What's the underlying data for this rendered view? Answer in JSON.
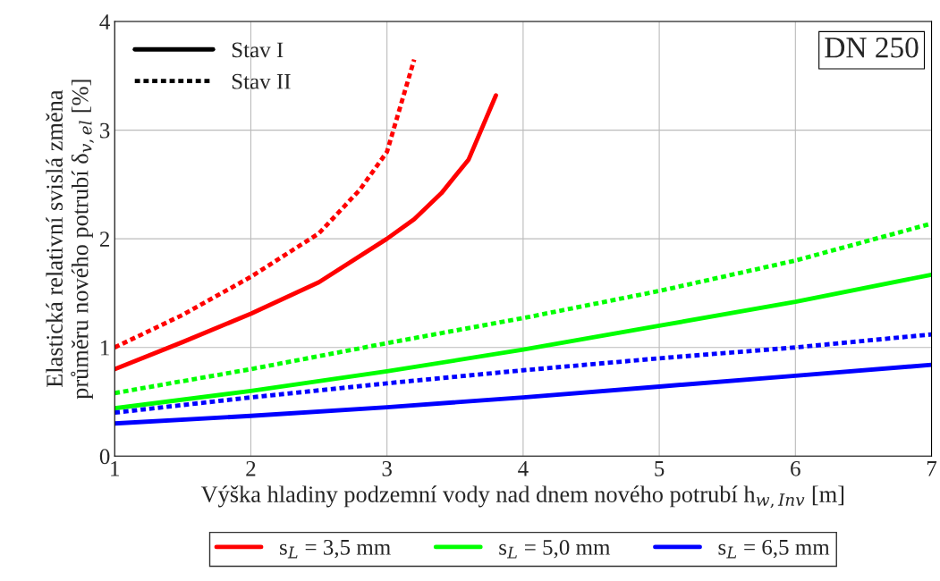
{
  "chart_data": {
    "type": "line",
    "xlabel": "Výška hladiny podzemní vody nad dnem nového potrubí h$_{w,Inv}$ [m]",
    "ylabel": "Elastická relativní svislá změna\nprůměru nového potrubí δ$_{v,el}$ [%]",
    "annotations": [
      "DN 250",
      "Stav I",
      "Stav II"
    ],
    "xlim": [
      1,
      7
    ],
    "ylim": [
      0,
      4
    ],
    "xticks": [
      1,
      2,
      3,
      4,
      5,
      6,
      7
    ],
    "yticks": [
      0,
      1,
      2,
      3,
      4
    ],
    "grid": true,
    "legend": "bottom",
    "marker": "none",
    "series": [
      {
        "name": "s$_{L}$ = 3,5 mm",
        "color": "#ff0000",
        "line_style": "solid",
        "x": [
          1,
          1.5,
          2,
          2.5,
          3,
          3.2,
          3.4,
          3.6,
          3.8
        ],
        "values": [
          0.8,
          1.05,
          1.31,
          1.6,
          2.0,
          2.18,
          2.42,
          2.73,
          3.32
        ]
      },
      {
        "color": "#ff0000",
        "line_style": "dotted",
        "x": [
          1,
          1.5,
          2,
          2.5,
          2.8,
          3.0,
          3.2
        ],
        "values": [
          1.0,
          1.3,
          1.65,
          2.05,
          2.45,
          2.8,
          3.65
        ]
      },
      {
        "name": "s$_{L}$ = 5,0 mm",
        "color": "#00ff00",
        "line_style": "solid",
        "x": [
          1,
          2,
          3,
          4,
          5,
          6,
          7
        ],
        "values": [
          0.44,
          0.6,
          0.78,
          0.98,
          1.2,
          1.42,
          1.67
        ]
      },
      {
        "color": "#00ff00",
        "line_style": "dotted",
        "x": [
          1,
          2,
          3,
          4,
          5,
          6,
          7
        ],
        "values": [
          0.58,
          0.8,
          1.04,
          1.27,
          1.52,
          1.8,
          2.14
        ]
      },
      {
        "name": "s$_{L}$ = 6,5 mm",
        "color": "#0000ff",
        "line_style": "solid",
        "x": [
          1,
          2,
          3,
          4,
          5,
          6,
          7
        ],
        "values": [
          0.3,
          0.37,
          0.45,
          0.54,
          0.64,
          0.74,
          0.84
        ]
      },
      {
        "color": "#0000ff",
        "line_style": "dotted",
        "x": [
          1,
          2,
          3,
          4,
          5,
          6,
          7
        ],
        "values": [
          0.4,
          0.54,
          0.67,
          0.79,
          0.9,
          1.0,
          1.12
        ]
      }
    ]
  }
}
